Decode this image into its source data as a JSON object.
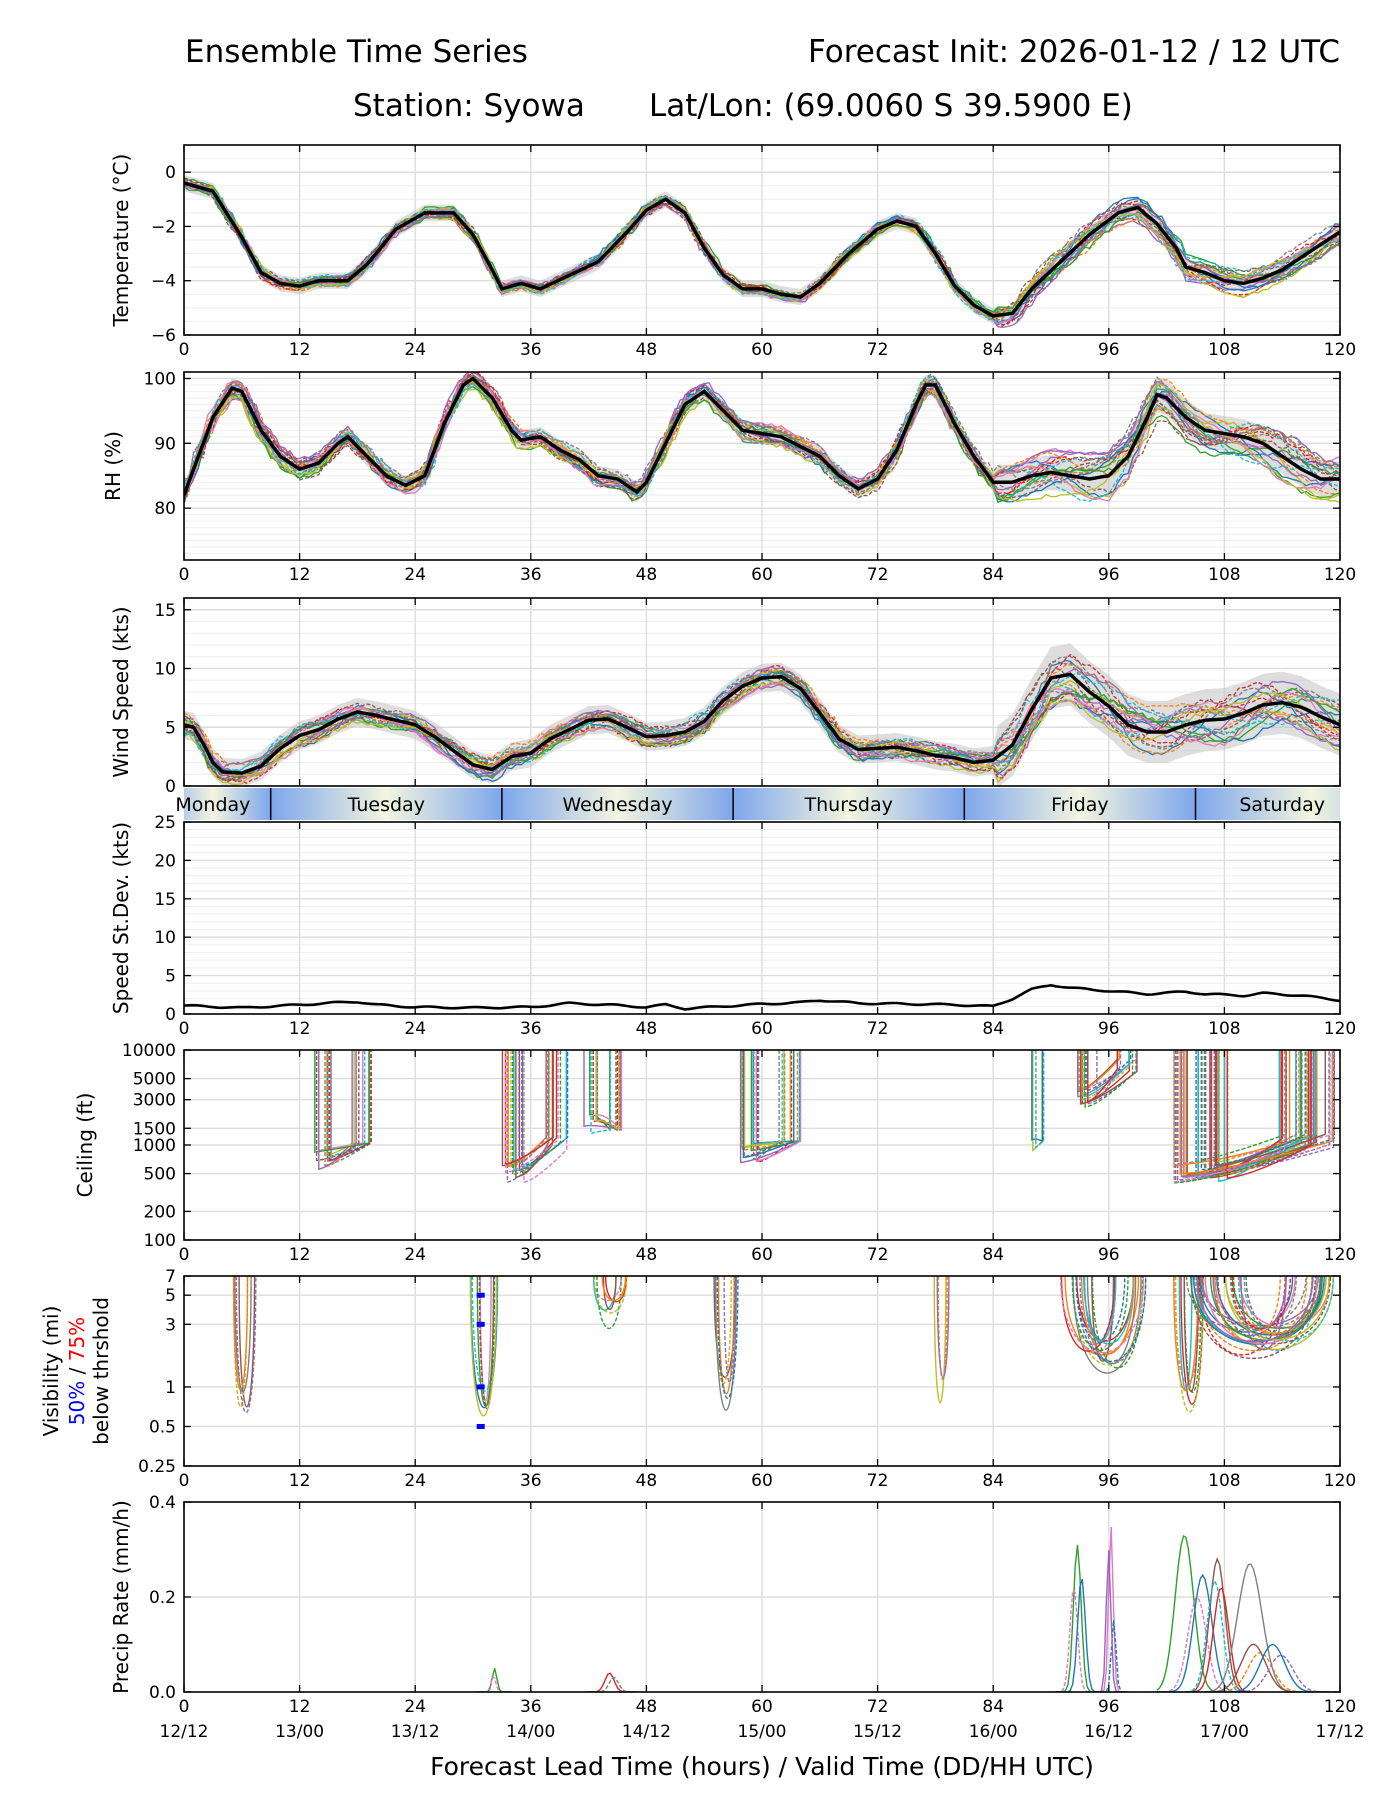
{
  "header": {
    "title_left": "Ensemble Time Series",
    "title_right": "Forecast Init: 2026-01-12 / 12 UTC",
    "station": "Station: Syowa",
    "latlon": "Lat/Lon: (69.0060 S 39.5900 E)"
  },
  "colors": {
    "ensemble": [
      "#1f77b4",
      "#ff7f0e",
      "#2ca02c",
      "#d62728",
      "#9467bd",
      "#8c564b",
      "#e377c2",
      "#7f7f7f",
      "#bcbd22",
      "#17becf"
    ],
    "mean": "#000000",
    "spread": "#bdbdbd",
    "p50": "#0000ff",
    "p75": "#ff0000"
  },
  "chart_data": {
    "type": "line",
    "x_range": [
      0,
      120
    ],
    "x_ticks": [
      0,
      12,
      24,
      36,
      48,
      60,
      72,
      84,
      96,
      108,
      120
    ],
    "valid_time_ticks": [
      "12/12",
      "13/00",
      "13/12",
      "14/00",
      "14/12",
      "15/00",
      "15/12",
      "16/00",
      "16/12",
      "17/00",
      "17/12"
    ],
    "xlabel": "Forecast Lead Time (hours) / Valid Time (DD/HH UTC)",
    "days": [
      {
        "label": "Monday",
        "start": -3,
        "end": 9
      },
      {
        "label": "Tuesday",
        "start": 9,
        "end": 33
      },
      {
        "label": "Wednesday",
        "start": 33,
        "end": 57
      },
      {
        "label": "Thursday",
        "start": 57,
        "end": 81
      },
      {
        "label": "Friday",
        "start": 81,
        "end": 105
      },
      {
        "label": "Saturday",
        "start": 105,
        "end": 129
      }
    ],
    "panels": [
      {
        "id": "temperature",
        "ylabel": "Temperature (°C)",
        "ylim": [
          -6,
          1
        ],
        "yticks": [
          0,
          -2,
          -4,
          -6
        ],
        "ytick_labels": [
          "0",
          "−2",
          "−4",
          "−6"
        ],
        "mean": [
          [
            0,
            -0.4
          ],
          [
            3,
            -0.7
          ],
          [
            6,
            -2.4
          ],
          [
            8,
            -3.7
          ],
          [
            10,
            -4.1
          ],
          [
            12,
            -4.2
          ],
          [
            14,
            -4.0
          ],
          [
            17,
            -4.0
          ],
          [
            19,
            -3.4
          ],
          [
            22,
            -2.1
          ],
          [
            25,
            -1.5
          ],
          [
            28,
            -1.5
          ],
          [
            30,
            -2.3
          ],
          [
            32,
            -3.6
          ],
          [
            33,
            -4.3
          ],
          [
            35,
            -4.1
          ],
          [
            37,
            -4.3
          ],
          [
            40,
            -3.8
          ],
          [
            43,
            -3.3
          ],
          [
            46,
            -2.2
          ],
          [
            48,
            -1.4
          ],
          [
            50,
            -1.0
          ],
          [
            52,
            -1.5
          ],
          [
            54,
            -2.8
          ],
          [
            56,
            -3.8
          ],
          [
            58,
            -4.3
          ],
          [
            60,
            -4.3
          ],
          [
            62,
            -4.5
          ],
          [
            64,
            -4.6
          ],
          [
            66,
            -4.1
          ],
          [
            69,
            -3.0
          ],
          [
            72,
            -2.1
          ],
          [
            74,
            -1.8
          ],
          [
            76,
            -2.0
          ],
          [
            78,
            -3.0
          ],
          [
            80,
            -4.2
          ],
          [
            82,
            -4.9
          ],
          [
            84,
            -5.3
          ],
          [
            86,
            -5.2
          ],
          [
            88,
            -4.3
          ],
          [
            91,
            -3.3
          ],
          [
            94,
            -2.3
          ],
          [
            97,
            -1.5
          ],
          [
            99,
            -1.3
          ],
          [
            101,
            -1.9
          ],
          [
            103,
            -2.8
          ],
          [
            104,
            -3.5
          ],
          [
            106,
            -3.7
          ],
          [
            108,
            -4.0
          ],
          [
            110,
            -4.1
          ],
          [
            112,
            -3.9
          ],
          [
            114,
            -3.6
          ],
          [
            117,
            -2.9
          ],
          [
            120,
            -2.2
          ]
        ],
        "spread": 0.3
      },
      {
        "id": "rh",
        "ylabel": "RH (%)",
        "ylim": [
          72,
          101
        ],
        "yticks": [
          100,
          90,
          80
        ],
        "ytick_labels": [
          "100",
          "90",
          "80"
        ],
        "mean": [
          [
            0,
            82
          ],
          [
            1,
            86
          ],
          [
            3,
            94
          ],
          [
            5,
            98.5
          ],
          [
            6,
            98
          ],
          [
            8,
            92
          ],
          [
            10,
            88
          ],
          [
            12,
            86
          ],
          [
            14,
            87
          ],
          [
            16,
            90
          ],
          [
            17,
            91
          ],
          [
            19,
            88
          ],
          [
            21,
            85
          ],
          [
            23,
            83.5
          ],
          [
            25,
            85
          ],
          [
            27,
            93
          ],
          [
            29,
            99
          ],
          [
            30,
            100
          ],
          [
            32,
            97
          ],
          [
            34,
            92
          ],
          [
            35,
            90.5
          ],
          [
            37,
            91
          ],
          [
            39,
            89
          ],
          [
            41,
            87.5
          ],
          [
            43,
            85
          ],
          [
            45,
            84.5
          ],
          [
            47,
            82.5
          ],
          [
            48,
            84
          ],
          [
            50,
            90
          ],
          [
            52,
            96
          ],
          [
            54,
            98
          ],
          [
            56,
            95
          ],
          [
            58,
            92
          ],
          [
            60,
            91.5
          ],
          [
            62,
            91
          ],
          [
            64,
            89.5
          ],
          [
            66,
            88
          ],
          [
            68,
            85
          ],
          [
            70,
            83
          ],
          [
            72,
            84.5
          ],
          [
            74,
            89
          ],
          [
            76,
            96
          ],
          [
            77,
            99
          ],
          [
            78,
            99
          ],
          [
            80,
            93
          ],
          [
            82,
            88
          ],
          [
            84,
            84
          ],
          [
            86,
            84
          ],
          [
            88,
            85
          ],
          [
            90,
            85.5
          ],
          [
            92,
            85
          ],
          [
            94,
            84.5
          ],
          [
            96,
            85
          ],
          [
            98,
            88
          ],
          [
            100,
            94
          ],
          [
            101,
            97.5
          ],
          [
            102,
            97
          ],
          [
            104,
            94
          ],
          [
            106,
            92
          ],
          [
            108,
            91.5
          ],
          [
            110,
            91
          ],
          [
            112,
            90
          ],
          [
            114,
            88
          ],
          [
            116,
            86
          ],
          [
            118,
            84.5
          ],
          [
            120,
            84.5
          ]
        ],
        "spread": 1.5
      },
      {
        "id": "wind",
        "ylabel": "Wind Speed (kts)",
        "ylim": [
          0,
          16
        ],
        "yticks": [
          15,
          10,
          5,
          0
        ],
        "ytick_labels": [
          "15",
          "10",
          "5",
          "0"
        ],
        "mean": [
          [
            0,
            5.2
          ],
          [
            1,
            5
          ],
          [
            2,
            3.6
          ],
          [
            3,
            2
          ],
          [
            4,
            1.2
          ],
          [
            6,
            1.1
          ],
          [
            8,
            1.7
          ],
          [
            10,
            3.2
          ],
          [
            12,
            4.3
          ],
          [
            14,
            4.8
          ],
          [
            16,
            5.7
          ],
          [
            18,
            6.3
          ],
          [
            20,
            6
          ],
          [
            22,
            5.6
          ],
          [
            24,
            5.2
          ],
          [
            26,
            4.2
          ],
          [
            28,
            3
          ],
          [
            30,
            1.8
          ],
          [
            32,
            1.4
          ],
          [
            34,
            2.5
          ],
          [
            36,
            2.8
          ],
          [
            38,
            4
          ],
          [
            40,
            4.8
          ],
          [
            42,
            5.6
          ],
          [
            44,
            5.7
          ],
          [
            46,
            5
          ],
          [
            48,
            4.2
          ],
          [
            50,
            4.3
          ],
          [
            52,
            4.6
          ],
          [
            54,
            5.5
          ],
          [
            56,
            7.3
          ],
          [
            58,
            8.5
          ],
          [
            60,
            9.2
          ],
          [
            62,
            9.3
          ],
          [
            64,
            8.3
          ],
          [
            66,
            6.2
          ],
          [
            68,
            4
          ],
          [
            70,
            3.1
          ],
          [
            72,
            3.2
          ],
          [
            74,
            3.3
          ],
          [
            76,
            3
          ],
          [
            78,
            2.6
          ],
          [
            80,
            2.4
          ],
          [
            82,
            2
          ],
          [
            84,
            2.2
          ],
          [
            86,
            3.5
          ],
          [
            88,
            6.5
          ],
          [
            90,
            9.2
          ],
          [
            92,
            9.5
          ],
          [
            94,
            8
          ],
          [
            96,
            6.8
          ],
          [
            98,
            5.2
          ],
          [
            100,
            4.6
          ],
          [
            102,
            4.6
          ],
          [
            104,
            5.2
          ],
          [
            106,
            5.6
          ],
          [
            108,
            5.7
          ],
          [
            110,
            6.2
          ],
          [
            112,
            6.9
          ],
          [
            114,
            7.1
          ],
          [
            116,
            6.7
          ],
          [
            118,
            5.9
          ],
          [
            120,
            5.2
          ]
        ],
        "spread": 1.2
      },
      {
        "id": "speed_sd",
        "ylabel": "Speed St.Dev. (kts)",
        "ylim": [
          0,
          25
        ],
        "yticks": [
          25,
          20,
          15,
          10,
          5,
          0
        ],
        "ytick_labels": [
          "25",
          "20",
          "15",
          "10",
          "5",
          "0"
        ],
        "mean": [
          [
            0,
            1.1
          ],
          [
            6,
            0.8
          ],
          [
            12,
            1.2
          ],
          [
            16,
            1.5
          ],
          [
            18,
            1.6
          ],
          [
            20,
            1.2
          ],
          [
            24,
            0.9
          ],
          [
            30,
            0.8
          ],
          [
            36,
            0.9
          ],
          [
            40,
            1.4
          ],
          [
            44,
            1.2
          ],
          [
            48,
            0.9
          ],
          [
            50,
            1.2
          ],
          [
            52,
            0.7
          ],
          [
            56,
            1.0
          ],
          [
            60,
            1.3
          ],
          [
            64,
            1.5
          ],
          [
            66,
            1.8
          ],
          [
            70,
            1.4
          ],
          [
            76,
            1.3
          ],
          [
            80,
            1.2
          ],
          [
            84,
            1.0
          ],
          [
            86,
            2.0
          ],
          [
            88,
            3.2
          ],
          [
            90,
            3.8
          ],
          [
            92,
            3.4
          ],
          [
            96,
            3.0
          ],
          [
            100,
            2.6
          ],
          [
            104,
            2.9
          ],
          [
            106,
            2.6
          ],
          [
            110,
            2.4
          ],
          [
            112,
            2.7
          ],
          [
            116,
            2.4
          ],
          [
            120,
            1.8
          ]
        ]
      },
      {
        "id": "ceiling",
        "ylabel": "Ceiling (ft)",
        "ylim": [
          100,
          10000
        ],
        "scale": "log",
        "yticks": [
          10000,
          5000,
          3000,
          1500,
          1000,
          500,
          200,
          100
        ],
        "ytick_labels": [
          "10000",
          "5000",
          "3000",
          "1500",
          "1000",
          "500",
          "200",
          "100"
        ],
        "events": [
          [
            13.5,
            19.5,
            550,
            1050
          ],
          [
            33,
            40,
            400,
            1200
          ],
          [
            41.5,
            45.5,
            1300,
            1450
          ],
          [
            57.5,
            64,
            650,
            1100
          ],
          [
            88,
            89.5,
            800,
            1100
          ],
          [
            92.5,
            99,
            2500,
            8000
          ],
          [
            102.5,
            119.5,
            400,
            1300
          ]
        ]
      },
      {
        "id": "visibility",
        "ylabel_lines": [
          "Visibility (mi)",
          "50% / 75%",
          "below thrshold"
        ],
        "ylabel_line1": "Visibility (mi)",
        "ylabel_p50": "50%",
        "ylabel_sep": " / ",
        "ylabel_p75": "75%",
        "ylabel_line3": "below thrshold",
        "ylim": [
          0.25,
          7
        ],
        "scale": "log",
        "yticks": [
          7,
          5,
          3,
          1,
          0.5,
          0.25
        ],
        "ytick_labels": [
          "7",
          "5",
          "3",
          "1",
          "0.5",
          "0.25"
        ],
        "events": [
          [
            5.0,
            7.5,
            0.25,
            7
          ],
          [
            29.5,
            33.0,
            0.25,
            7
          ],
          [
            42.5,
            46,
            2.0,
            6.5
          ],
          [
            55,
            58,
            0.3,
            6.5
          ],
          [
            77.8,
            79.5,
            0.35,
            7
          ],
          [
            91,
            100,
            0.7,
            6.5
          ],
          [
            102.5,
            106,
            0.25,
            7
          ],
          [
            104,
            120,
            1.0,
            6.0
          ]
        ],
        "p50_marks": [
          [
            30.8,
            5
          ],
          [
            30.8,
            3
          ],
          [
            30.8,
            1
          ],
          [
            30.8,
            0.5
          ]
        ]
      },
      {
        "id": "precip",
        "ylabel": "Precip Rate (mm/h)",
        "ylim": [
          0,
          0.4
        ],
        "yticks": [
          0.4,
          0.2,
          0.0
        ],
        "ytick_labels": [
          "0.4",
          "0.2",
          "0.0"
        ],
        "events": [
          [
            31.5,
            33,
            0.05
          ],
          [
            43,
            46,
            0.04
          ],
          [
            91.5,
            94,
            0.31
          ],
          [
            95.5,
            97,
            0.35
          ],
          [
            102,
            108,
            0.33
          ],
          [
            105,
            110,
            0.28
          ],
          [
            107,
            115,
            0.27
          ],
          [
            110,
            118,
            0.1
          ]
        ]
      }
    ]
  }
}
